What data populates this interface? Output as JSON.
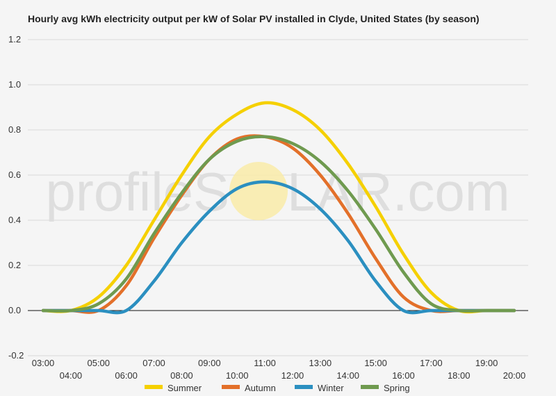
{
  "chart_data": {
    "type": "line",
    "title": "Hourly avg kWh electricity output per kW of Solar PV installed in Clyde, United States (by season)",
    "watermark": {
      "left": "profileS",
      "right": "LAR.com"
    },
    "ylim": [
      -0.2,
      1.2
    ],
    "y_ticks": [
      "-0.2",
      "0.0",
      "0.2",
      "0.4",
      "0.6",
      "0.8",
      "1.0",
      "1.2"
    ],
    "x": [
      "03:00",
      "04:00",
      "05:00",
      "06:00",
      "07:00",
      "08:00",
      "09:00",
      "10:00",
      "11:00",
      "12:00",
      "13:00",
      "14:00",
      "15:00",
      "16:00",
      "17:00",
      "18:00",
      "19:00",
      "20:00"
    ],
    "grid": true,
    "legend_position": "bottom",
    "series": [
      {
        "name": "Summer",
        "color": "#f5d000",
        "values": [
          0.0,
          0.0,
          0.06,
          0.2,
          0.4,
          0.6,
          0.77,
          0.87,
          0.92,
          0.89,
          0.8,
          0.65,
          0.46,
          0.25,
          0.08,
          0.0,
          0.0,
          0.0
        ]
      },
      {
        "name": "Autumn",
        "color": "#e3702a",
        "values": [
          0.0,
          0.0,
          0.0,
          0.11,
          0.32,
          0.51,
          0.67,
          0.76,
          0.77,
          0.72,
          0.6,
          0.43,
          0.23,
          0.06,
          0.0,
          0.0,
          0.0,
          0.0
        ]
      },
      {
        "name": "Winter",
        "color": "#2b8fc0",
        "values": [
          0.0,
          0.0,
          0.0,
          0.0,
          0.13,
          0.3,
          0.44,
          0.54,
          0.57,
          0.54,
          0.45,
          0.31,
          0.13,
          0.0,
          0.0,
          0.0,
          0.0,
          0.0
        ]
      },
      {
        "name": "Spring",
        "color": "#6f9a4f",
        "values": [
          0.0,
          0.0,
          0.03,
          0.14,
          0.34,
          0.52,
          0.67,
          0.75,
          0.77,
          0.74,
          0.66,
          0.53,
          0.36,
          0.17,
          0.03,
          0.0,
          0.0,
          0.0
        ]
      }
    ]
  }
}
